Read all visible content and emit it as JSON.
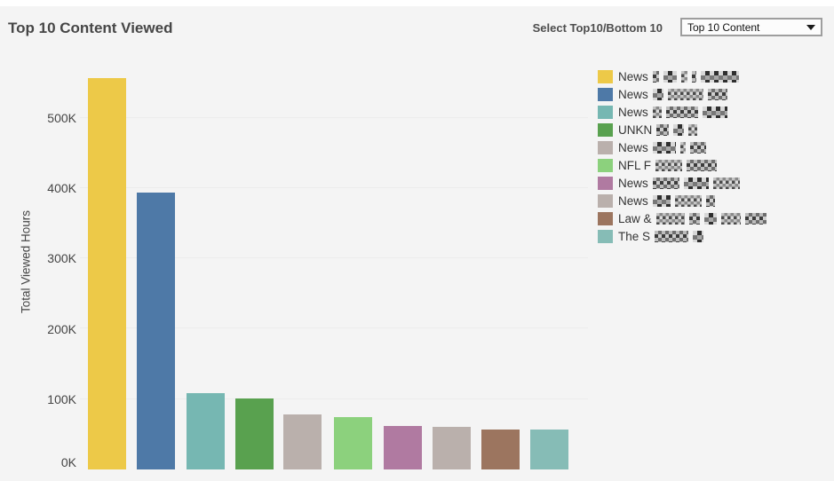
{
  "header": {
    "title": "Top 10 Content Viewed"
  },
  "controls": {
    "label": "Select Top10/Bottom 10",
    "dropdown_value": "Top 10 Content",
    "dropdown_icon": "caret-down-icon"
  },
  "axis": {
    "y_label": "Total Viewed Hours",
    "ticks": [
      {
        "label": "0K",
        "value": 0
      },
      {
        "label": "100K",
        "value": 100000
      },
      {
        "label": "200K",
        "value": 200000
      },
      {
        "label": "300K",
        "value": 300000
      },
      {
        "label": "400K",
        "value": 400000
      },
      {
        "label": "500K",
        "value": 500000
      }
    ]
  },
  "legend": {
    "items": [
      {
        "prefix": "News",
        "redacted": true,
        "color": "#EDC948",
        "chunks": [
          7,
          15,
          7,
          5,
          43
        ]
      },
      {
        "prefix": "News",
        "redacted": true,
        "color": "#4E79A7",
        "chunks": [
          12,
          40,
          22
        ]
      },
      {
        "prefix": "News",
        "redacted": true,
        "color": "#76B7B2",
        "chunks": [
          10,
          36,
          28
        ]
      },
      {
        "prefix": "UNKN",
        "redacted": true,
        "color": "#59A14F",
        "chunks": [
          14,
          12,
          10
        ]
      },
      {
        "prefix": "News",
        "redacted": true,
        "color": "#BAB0AC",
        "chunks": [
          26,
          6,
          18
        ]
      },
      {
        "prefix": "NFL F",
        "redacted": true,
        "color": "#8CD17D",
        "chunks": [
          30,
          34
        ]
      },
      {
        "prefix": "News",
        "redacted": true,
        "color": "#B07AA1",
        "chunks": [
          30,
          28,
          30
        ]
      },
      {
        "prefix": "News",
        "redacted": true,
        "color": "#BAB0AC",
        "chunks": [
          20,
          30,
          10
        ]
      },
      {
        "prefix": "Law &",
        "redacted": true,
        "color": "#9C755F",
        "chunks": [
          32,
          12,
          14,
          22,
          24
        ]
      },
      {
        "prefix": "The S",
        "redacted": true,
        "color": "#86BCB6",
        "chunks": [
          38,
          12
        ]
      }
    ]
  },
  "chart_data": {
    "type": "bar",
    "title": "Top 10 Content Viewed",
    "xlabel": "",
    "ylabel": "Total Viewed Hours",
    "categories": [
      "News …",
      "News …",
      "News …",
      "UNKN…",
      "News …",
      "NFL F…",
      "News …",
      "News …",
      "Law & …",
      "The S…"
    ],
    "values": [
      556000,
      394000,
      108000,
      101000,
      78000,
      74000,
      62000,
      61000,
      57000,
      57000
    ],
    "colors": [
      "#EDC948",
      "#4E79A7",
      "#76B7B2",
      "#59A14F",
      "#BAB0AC",
      "#8CD17D",
      "#B07AA1",
      "#BAB0AC",
      "#9C755F",
      "#86BCB6"
    ],
    "ylim": [
      0,
      560000
    ],
    "yticks": [
      0,
      100000,
      200000,
      300000,
      400000,
      500000
    ],
    "ytick_labels": [
      "0K",
      "100K",
      "200K",
      "300K",
      "400K",
      "500K"
    ],
    "grid": "horizontal-faint",
    "legend_position": "right"
  }
}
